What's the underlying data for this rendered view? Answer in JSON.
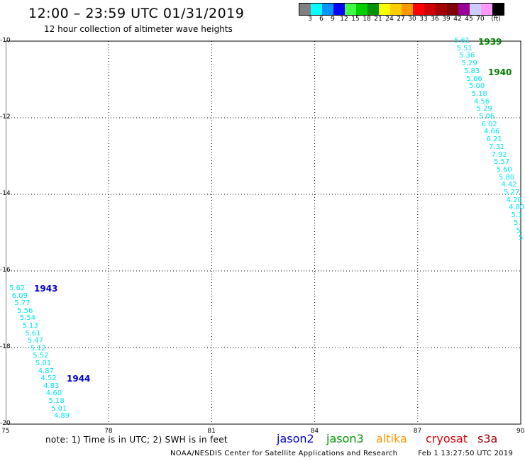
{
  "header": {
    "title": "12:00 – 23:59 UTC 01/31/2019",
    "subtitle": "12 hour collection of altimeter wave heights"
  },
  "color_scale": {
    "colors": [
      "#808080",
      "#00ffff",
      "#0095ff",
      "#0000ff",
      "#40ff40",
      "#00d000",
      "#009000",
      "#ffff00",
      "#ffcc00",
      "#ff9900",
      "#ff0000",
      "#d00000",
      "#a00000",
      "#800000",
      "#990099",
      "#ccccff",
      "#ff99ff",
      "#000000"
    ],
    "labels": [
      "3",
      "6",
      "9",
      "12",
      "15",
      "18",
      "21",
      "24",
      "27",
      "30",
      "33",
      "36",
      "39",
      "42",
      "45",
      "70",
      "(ft)"
    ]
  },
  "axes": {
    "x_ticks": [
      "75",
      "78",
      "81",
      "84",
      "87",
      "90"
    ],
    "y_ticks": [
      "-10",
      "-12",
      "-14",
      "-16",
      "-18",
      "-20"
    ],
    "lon_range": [
      75,
      90
    ],
    "lat_range": [
      -20,
      -10
    ]
  },
  "passes": [
    {
      "label": "1939",
      "color": "#007f00"
    },
    {
      "label": "1940",
      "color": "#007f00"
    },
    {
      "label": "1943",
      "color": "#0000cc"
    },
    {
      "label": "1944",
      "color": "#0000cc"
    }
  ],
  "tracks": {
    "east": [
      "5.61",
      "5.51",
      "5.36",
      "5.29",
      "5.83",
      "5.66",
      "5.00",
      "5.18",
      "4.56",
      "5.29",
      "5.06",
      "6.02",
      "4.66",
      "6.21",
      "7.31",
      "7.92",
      "5.57",
      "5.60",
      "5.80",
      "4.42",
      "5.27",
      "4.20",
      "4.80",
      "5.1",
      "5.",
      "5.",
      "5"
    ],
    "west": [
      "5.62",
      "6.09",
      "5.77",
      "5.56",
      "5.54",
      "5.13",
      "5.61",
      "5.47",
      "5.12",
      "5.52",
      "5.01",
      "4.87",
      "4.52",
      "4.83",
      "4.60",
      "5.18",
      "5.01",
      "4.89"
    ]
  },
  "note": "note:  1) Time is in UTC;  2) SWH is in feet",
  "legend": [
    {
      "name": "jason2",
      "color": "#0000cc"
    },
    {
      "name": "jason3",
      "color": "#009900"
    },
    {
      "name": "altika",
      "color": "#ff9900"
    },
    {
      "name": "cryosat",
      "color": "#dd0000"
    },
    {
      "name": "s3a",
      "color": "#990000"
    }
  ],
  "footer": {
    "credit": "NOAA/NESDIS Center for Satellite Applications and Research",
    "timestamp": "Feb  1 13:27:50 UTC 2019"
  }
}
